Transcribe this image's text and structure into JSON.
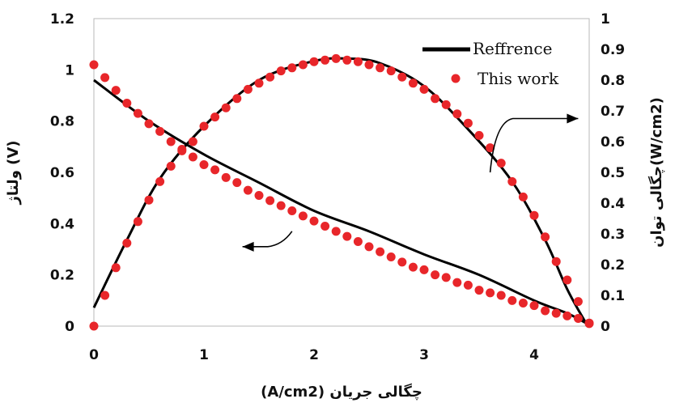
{
  "chart_data": {
    "type": "scatter",
    "xlabel": "(A/cm2) چگالی جریان",
    "ylabel_left": "ولتاژ (V)",
    "ylabel_right": "چگالی توان(W/cm2)",
    "xlim": [
      0,
      4.5
    ],
    "ylim_left": [
      0,
      1.2
    ],
    "ylim_right": [
      0,
      1
    ],
    "x_ticks": [
      "0",
      "1",
      "2",
      "3",
      "4"
    ],
    "y_left_ticks": [
      "0",
      "0.2",
      "0.4",
      "0.6",
      "0.8",
      "1",
      "1.2"
    ],
    "y_right_ticks": [
      "0",
      "0.1",
      "0.2",
      "0.3",
      "0.4",
      "0.5",
      "0.6",
      "0.7",
      "0.8",
      "0.9",
      "1"
    ],
    "grid": false,
    "legend_position": "top-right",
    "series": [
      {
        "name": "Reffrence",
        "style": "line",
        "color": "#000000",
        "axis": "left",
        "x": [
          0,
          0.5,
          1.0,
          1.5,
          2.0,
          2.5,
          3.0,
          3.5,
          4.0,
          4.3,
          4.47
        ],
        "y": [
          0.96,
          0.8,
          0.67,
          0.56,
          0.45,
          0.37,
          0.28,
          0.2,
          0.1,
          0.05,
          0.012
        ]
      },
      {
        "name": "Reffrence",
        "style": "line",
        "color": "#000000",
        "axis": "right",
        "x": [
          0,
          0.3,
          0.6,
          1.0,
          1.5,
          2.0,
          2.3,
          2.6,
          3.0,
          3.4,
          3.8,
          4.1,
          4.3,
          4.47
        ],
        "y": [
          0.06,
          0.28,
          0.48,
          0.65,
          0.8,
          0.862,
          0.87,
          0.855,
          0.78,
          0.64,
          0.47,
          0.28,
          0.12,
          0.01
        ]
      },
      {
        "name": "This work",
        "style": "markers",
        "color": "#e8262a",
        "axis": "left",
        "x": [
          0,
          0.1,
          0.2,
          0.3,
          0.4,
          0.5,
          0.6,
          0.7,
          0.8,
          0.9,
          1.0,
          1.1,
          1.2,
          1.3,
          1.4,
          1.5,
          1.6,
          1.7,
          1.8,
          1.9,
          2.0,
          2.1,
          2.2,
          2.3,
          2.4,
          2.5,
          2.6,
          2.7,
          2.8,
          2.9,
          3.0,
          3.1,
          3.2,
          3.3,
          3.4,
          3.5,
          3.6,
          3.7,
          3.8,
          3.9,
          4.0,
          4.1,
          4.2,
          4.3,
          4.4,
          4.5
        ],
        "y": [
          1.02,
          0.97,
          0.92,
          0.87,
          0.83,
          0.79,
          0.76,
          0.72,
          0.69,
          0.66,
          0.63,
          0.61,
          0.58,
          0.56,
          0.53,
          0.51,
          0.49,
          0.47,
          0.45,
          0.43,
          0.41,
          0.39,
          0.37,
          0.35,
          0.33,
          0.31,
          0.29,
          0.27,
          0.25,
          0.23,
          0.22,
          0.2,
          0.19,
          0.17,
          0.16,
          0.14,
          0.13,
          0.12,
          0.1,
          0.09,
          0.08,
          0.06,
          0.05,
          0.04,
          0.03,
          0.01
        ]
      },
      {
        "name": "This work",
        "style": "markers",
        "color": "#e8262a",
        "axis": "right",
        "x": [
          0,
          0.1,
          0.2,
          0.3,
          0.4,
          0.5,
          0.6,
          0.7,
          0.8,
          0.9,
          1.0,
          1.1,
          1.2,
          1.3,
          1.4,
          1.5,
          1.6,
          1.7,
          1.8,
          1.9,
          2.0,
          2.1,
          2.2,
          2.3,
          2.4,
          2.5,
          2.6,
          2.7,
          2.8,
          2.9,
          3.0,
          3.1,
          3.2,
          3.3,
          3.4,
          3.5,
          3.6,
          3.7,
          3.8,
          3.9,
          4.0,
          4.1,
          4.2,
          4.3,
          4.4,
          4.5
        ],
        "y": [
          0.0,
          0.1,
          0.19,
          0.27,
          0.34,
          0.41,
          0.47,
          0.52,
          0.57,
          0.6,
          0.65,
          0.68,
          0.71,
          0.74,
          0.77,
          0.79,
          0.81,
          0.83,
          0.84,
          0.85,
          0.86,
          0.865,
          0.87,
          0.865,
          0.86,
          0.85,
          0.84,
          0.83,
          0.81,
          0.79,
          0.77,
          0.74,
          0.72,
          0.69,
          0.66,
          0.62,
          0.58,
          0.53,
          0.47,
          0.42,
          0.36,
          0.29,
          0.21,
          0.15,
          0.08,
          0.01
        ]
      }
    ],
    "annotations": [
      {
        "kind": "arrow",
        "from": [
          1.8,
          0.37
        ],
        "to": [
          1.35,
          0.31
        ],
        "axis": "left",
        "meaning": "points to voltage axis"
      },
      {
        "kind": "arrow",
        "from": [
          3.6,
          0.5
        ],
        "to": [
          4.4,
          0.675
        ],
        "axis": "right",
        "meaning": "points to power density axis"
      }
    ]
  }
}
